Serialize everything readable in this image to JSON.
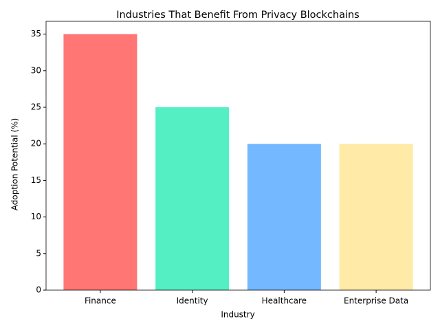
{
  "chart_data": {
    "type": "bar",
    "title": "Industries That Benefit From Privacy Blockchains",
    "x_label": "Industry",
    "y_label": "Adoption Potential (%)",
    "categories": [
      "Finance",
      "Identity",
      "Healthcare",
      "Enterprise Data"
    ],
    "values": [
      35,
      25,
      20,
      20
    ],
    "colors": [
      "#ff7675",
      "#55efc4",
      "#74b9ff",
      "#ffeaa7"
    ],
    "ylim": [
      0,
      36.75
    ],
    "yticks": [
      0,
      5,
      10,
      15,
      20,
      25,
      30,
      35
    ],
    "grid": false
  }
}
